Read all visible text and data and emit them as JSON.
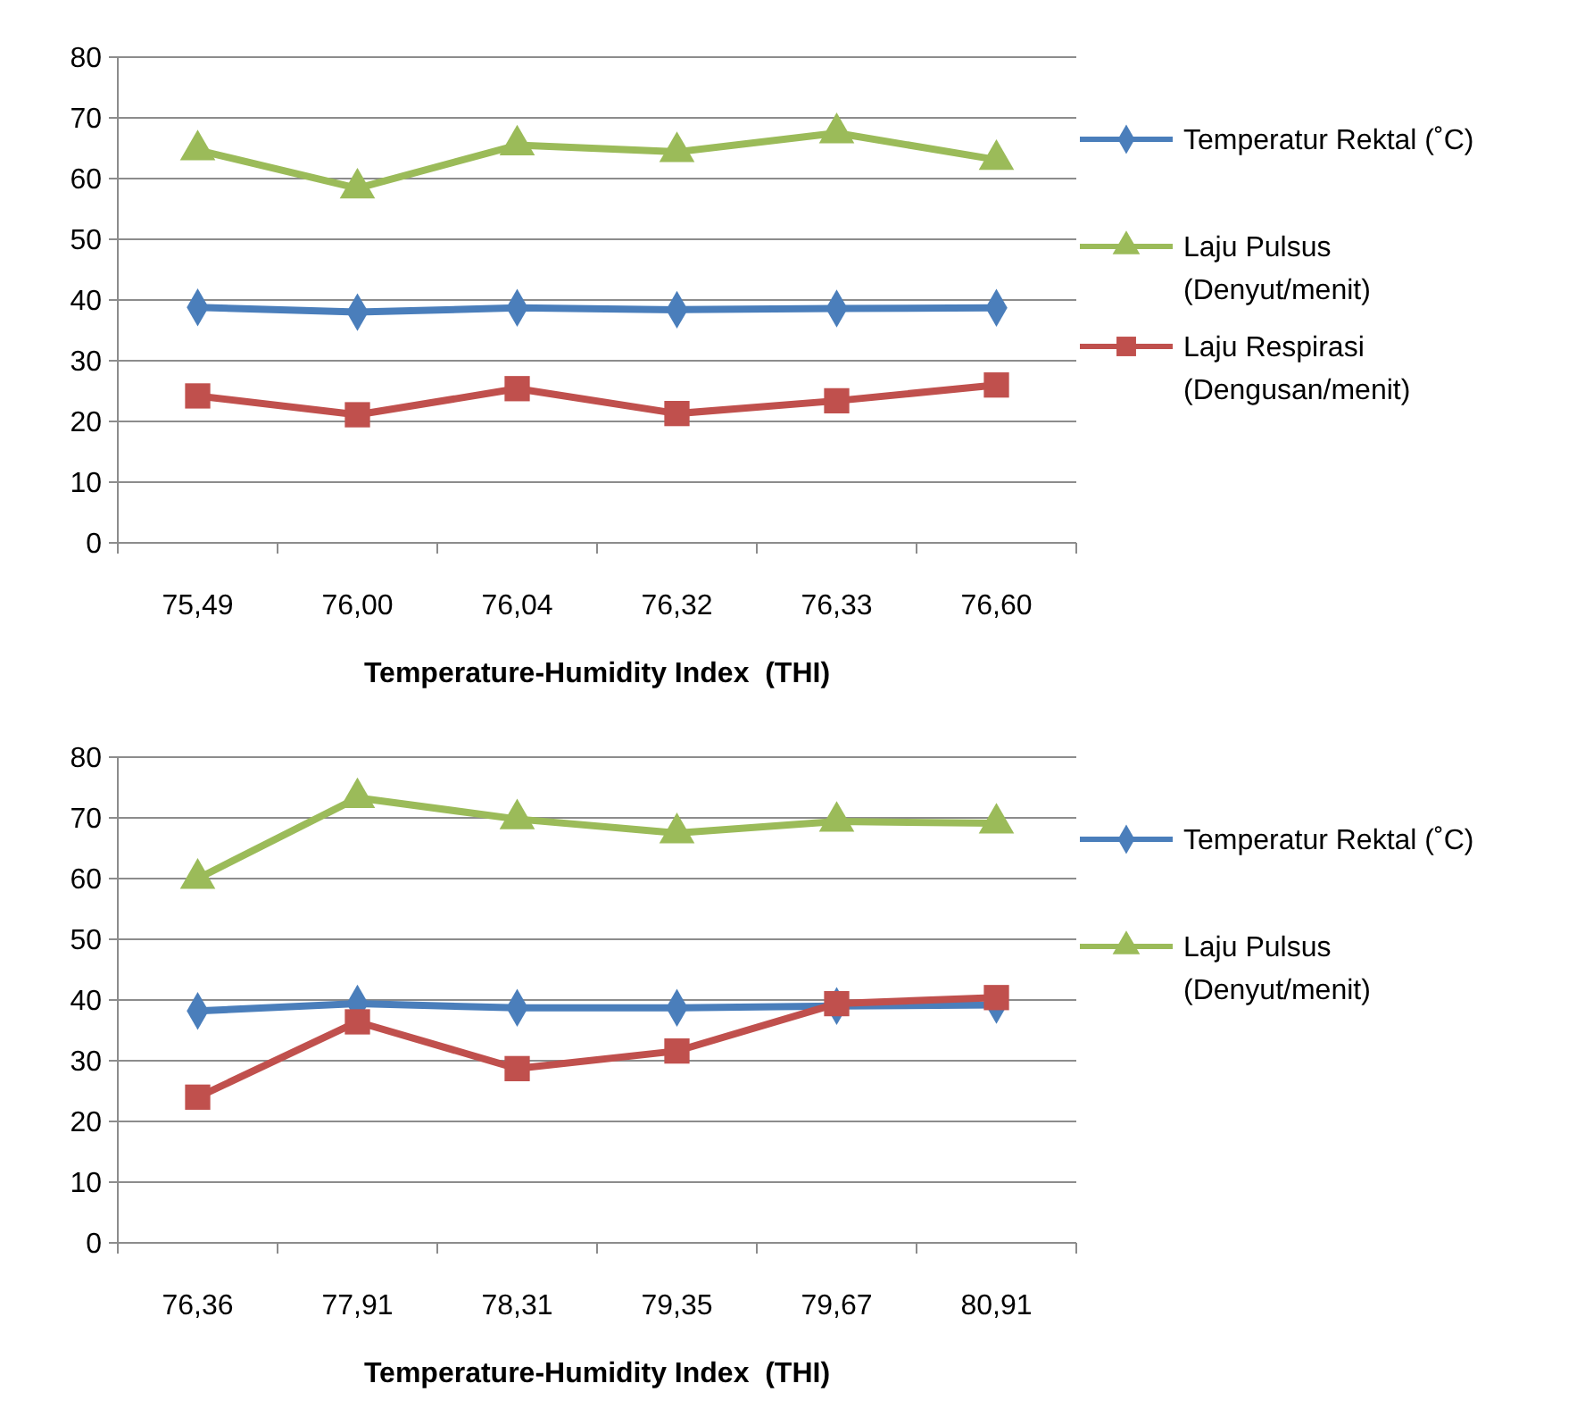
{
  "chart_data": [
    {
      "type": "line",
      "xlabel": "Temperature-Humidity Index  (THI)",
      "categories": [
        "75,49",
        "76,00",
        "76,04",
        "76,32",
        "76,33",
        "76,60"
      ],
      "ylim": [
        0,
        80
      ],
      "yticks": [
        0,
        10,
        20,
        30,
        40,
        50,
        60,
        70,
        80
      ],
      "grid": "y",
      "legend": "right",
      "series": [
        {
          "name": "Temperatur Rektal (˚C)",
          "color": "#4a7ebb",
          "marker": "diamond",
          "values": [
            38.8,
            38.0,
            38.7,
            38.4,
            38.6,
            38.7
          ]
        },
        {
          "name": "Laju Pulsus (Denyut/menit)",
          "color": "#9bbb59",
          "marker": "triangle",
          "values": [
            64.7,
            58.4,
            65.5,
            64.4,
            67.5,
            63.1
          ]
        },
        {
          "name": "Laju Respirasi (Dengusan/menit)",
          "color": "#c0504d",
          "marker": "square",
          "values": [
            24.2,
            21.1,
            25.4,
            21.3,
            23.4,
            26.0
          ]
        }
      ]
    },
    {
      "type": "line",
      "xlabel": "Temperature-Humidity Index  (THI)",
      "categories": [
        "76,36",
        "77,91",
        "78,31",
        "79,35",
        "79,67",
        "80,91"
      ],
      "ylim": [
        0,
        80
      ],
      "yticks": [
        0,
        10,
        20,
        30,
        40,
        50,
        60,
        70,
        80
      ],
      "grid": "y",
      "legend": "right",
      "series": [
        {
          "name": "Temperatur Rektal (˚C)",
          "color": "#4a7ebb",
          "marker": "diamond",
          "values": [
            38.2,
            39.4,
            38.7,
            38.7,
            39.0,
            39.2
          ]
        },
        {
          "name": "Laju Pulsus (Denyut/menit)",
          "color": "#9bbb59",
          "marker": "triangle",
          "values": [
            60.0,
            73.3,
            69.8,
            67.5,
            69.4,
            69.1
          ]
        },
        {
          "color": "#c0504d",
          "marker": "square",
          "values": [
            24.0,
            36.4,
            28.7,
            31.6,
            39.4,
            40.4
          ]
        }
      ]
    }
  ]
}
